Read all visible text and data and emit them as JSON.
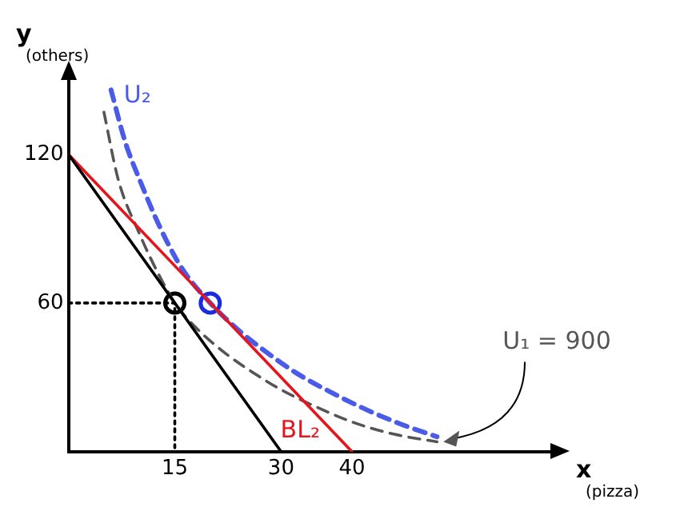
{
  "chart_data": {
    "type": "line",
    "xlabel": "x\n(pizza)",
    "ylabel": "y\n(others)",
    "xlim": [
      0,
      68
    ],
    "ylim": [
      0,
      150
    ],
    "xticks": [
      15,
      30,
      40
    ],
    "yticks": [
      60,
      120
    ],
    "grid": false,
    "legend": false,
    "series": [
      {
        "type": "line",
        "color": "#000000",
        "x": [
          0,
          30
        ],
        "values": [
          120,
          0
        ],
        "line_style": "solid",
        "marker": "none"
      },
      {
        "type": "line",
        "name": "BL₂",
        "color": "#e8141b",
        "x": [
          0,
          40
        ],
        "values": [
          120,
          0
        ],
        "line_style": "solid",
        "marker": "none"
      },
      {
        "type": "line",
        "name": "U₁ = 900",
        "color": "#555555",
        "x": [
          5,
          7,
          10,
          13,
          15,
          18,
          22,
          26,
          30,
          35,
          40,
          46,
          52
        ],
        "values": [
          137,
          110,
          88,
          70,
          60,
          50,
          40,
          32,
          25,
          18,
          12,
          7,
          4
        ],
        "line_style": "dashed",
        "marker": "none"
      },
      {
        "type": "line",
        "name": "U₂",
        "color": "#4a5be8",
        "x": [
          6,
          8,
          10,
          13,
          16,
          20,
          24,
          28,
          32,
          37,
          42,
          47,
          52
        ],
        "values": [
          146,
          125,
          110,
          90,
          74,
          60,
          49,
          40,
          32,
          24,
          17,
          11,
          6
        ],
        "line_style": "dashed",
        "marker": "none"
      },
      {
        "type": "line",
        "color": "#000000",
        "x": [
          0,
          15,
          15
        ],
        "values": [
          60,
          60,
          0
        ],
        "line_style": "dotted",
        "marker": "none"
      },
      {
        "type": "scatter",
        "color": "#000000",
        "x": [
          15
        ],
        "values": [
          60
        ],
        "marker": "circle"
      },
      {
        "type": "scatter",
        "color": "#1a2be0",
        "x": [
          20
        ],
        "values": [
          60
        ],
        "marker": "circle"
      }
    ]
  }
}
